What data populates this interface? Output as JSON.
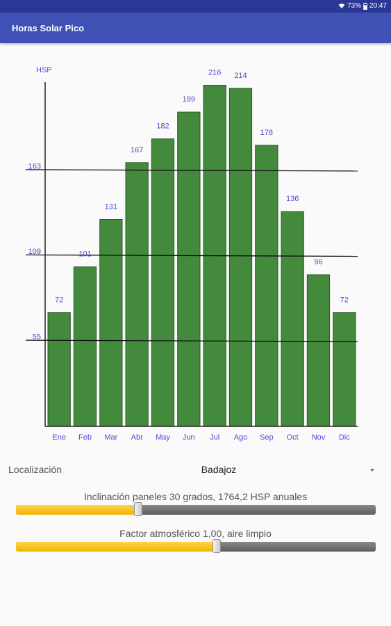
{
  "status_bar": {
    "battery": "73%",
    "time": "20:47",
    "icons": [
      "wifi-icon",
      "battery-icon"
    ]
  },
  "app_bar": {
    "title": "Horas Solar Pico"
  },
  "chart_data": {
    "type": "bar",
    "ylabel": "HSP",
    "categories": [
      "Ene",
      "Feb",
      "Mar",
      "Abr",
      "May",
      "Jun",
      "Jul",
      "Ago",
      "Sep",
      "Oct",
      "Nov",
      "Dic"
    ],
    "values": [
      72,
      101,
      131,
      167,
      182,
      199,
      216,
      214,
      178,
      136,
      96,
      72
    ],
    "reference_lines": [
      55,
      109,
      163
    ],
    "ylim": [
      0,
      218
    ],
    "colors": {
      "bar": "#438a3d",
      "bar_border": "#2a5a27",
      "label": "#4a4ad6",
      "axis": "#222222",
      "reference_line": "#111111"
    }
  },
  "location": {
    "label": "Localización",
    "value": "Badajoz"
  },
  "sliders": [
    {
      "caption": "Inclinación paneles 30 grados, 1764,2 HSP anuales",
      "fraction": 0.34
    },
    {
      "caption": "Factor atmosférico 1,00, aire limpio",
      "fraction": 0.557
    }
  ]
}
